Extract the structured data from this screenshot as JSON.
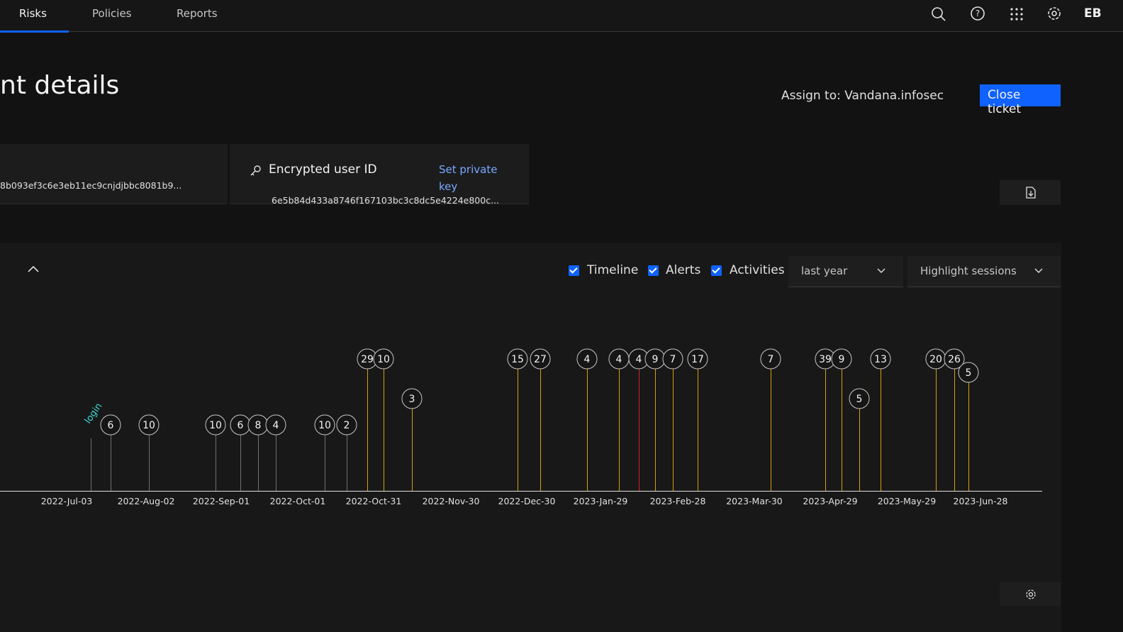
{
  "nav": {
    "tabs": [
      "Risks",
      "Policies",
      "Reports"
    ],
    "avatar": "EB"
  },
  "header": {
    "title": "nt details",
    "assign": "Assign to: Vandana.infosec",
    "close_button": "Close ticket"
  },
  "cards": [
    {
      "value": "8b093ef3c6e3eb11ec9cnjdjbbc8081b9..."
    },
    {
      "title": "Encrypted user ID",
      "link": "Set private key",
      "value": "6e5b84d433a8746f167103bc3c8dc5e4224e800c..."
    }
  ],
  "filters": {
    "checkboxes": [
      "Timeline",
      "Alerts",
      "Activities"
    ],
    "range": "last year",
    "highlight": "Highlight sessions"
  },
  "timeline": {
    "annotation": "login",
    "events": [
      6,
      10,
      10,
      6,
      8,
      4,
      10,
      2,
      29,
      10,
      3,
      15,
      27,
      4,
      4,
      4,
      9,
      7,
      17,
      7,
      39,
      9,
      5,
      13,
      20,
      26,
      5
    ],
    "dates": [
      "2022-Jul-03",
      "2022-Aug-02",
      "2022-Sep-01",
      "2022-Oct-01",
      "2022-Oct-31",
      "2022-Nov-30",
      "2022-Dec-30",
      "2023-Jan-29",
      "2023-Feb-28",
      "2023-Mar-30",
      "2023-Apr-29",
      "2023-May-29",
      "2023-Jun-28"
    ]
  }
}
